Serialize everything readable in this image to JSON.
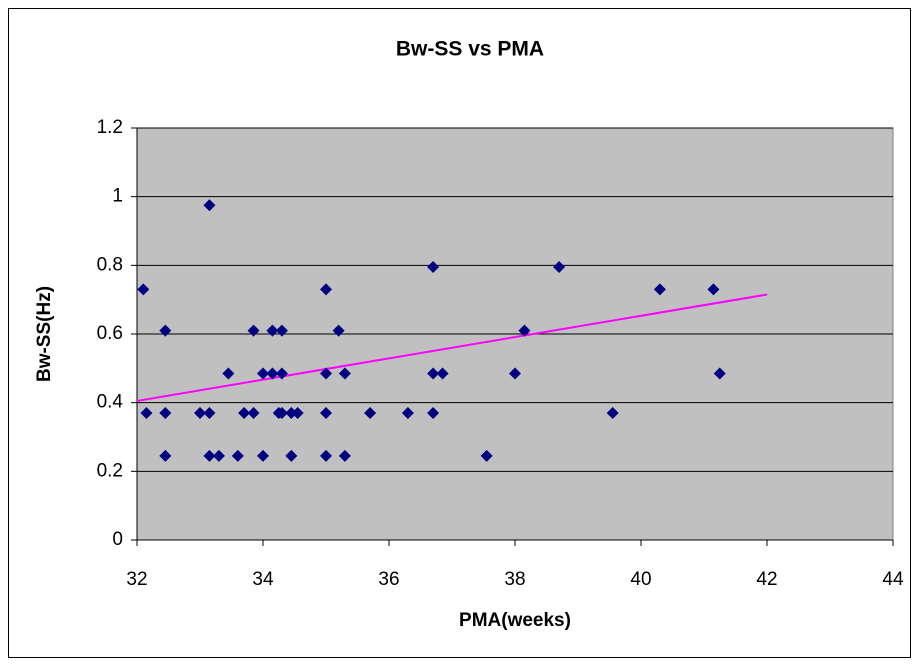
{
  "chart_data": {
    "type": "scatter",
    "title": "Bw-SS vs PMA",
    "x_label": "PMA(weeks)",
    "y_label": "Bw-SS(Hz)",
    "series": [
      {
        "color": "#000080",
        "x": [
          32.1,
          32.15,
          32.45,
          32.45,
          32.45,
          33.0,
          33.15,
          33.15,
          33.15,
          33.3,
          33.45,
          33.6,
          33.7,
          33.85,
          33.85,
          34.0,
          34.0,
          34.15,
          34.15,
          34.25,
          34.3,
          34.3,
          34.3,
          34.45,
          34.45,
          34.55,
          35.0,
          35.0,
          35.0,
          35.0,
          35.2,
          35.3,
          35.3,
          35.7,
          36.3,
          36.7,
          36.7,
          36.7,
          36.85,
          37.55,
          38.0,
          38.15,
          38.7,
          39.55,
          40.3,
          41.15,
          41.25
        ],
        "values": [
          0.73,
          0.37,
          0.61,
          0.37,
          0.245,
          0.37,
          0.37,
          0.975,
          0.245,
          0.245,
          0.485,
          0.245,
          0.37,
          0.37,
          0.61,
          0.485,
          0.245,
          0.61,
          0.485,
          0.37,
          0.61,
          0.485,
          0.37,
          0.37,
          0.245,
          0.37,
          0.73,
          0.485,
          0.37,
          0.245,
          0.61,
          0.485,
          0.245,
          0.37,
          0.37,
          0.795,
          0.485,
          0.37,
          0.485,
          0.245,
          0.485,
          0.61,
          0.795,
          0.37,
          0.73,
          0.73,
          0.485
        ]
      }
    ],
    "trendline": {
      "color": "#ff00ff",
      "x": [
        32,
        42
      ],
      "values": [
        0.405,
        0.715
      ]
    },
    "xlim": [
      32,
      44
    ],
    "xticks": [
      32,
      34,
      36,
      38,
      40,
      42,
      44
    ],
    "ylim": [
      0,
      1.2
    ],
    "yticks": [
      0,
      0.2,
      0.4,
      0.6,
      0.8,
      1,
      1.2
    ],
    "grid": true,
    "plot_background": "#c0c0c0"
  }
}
